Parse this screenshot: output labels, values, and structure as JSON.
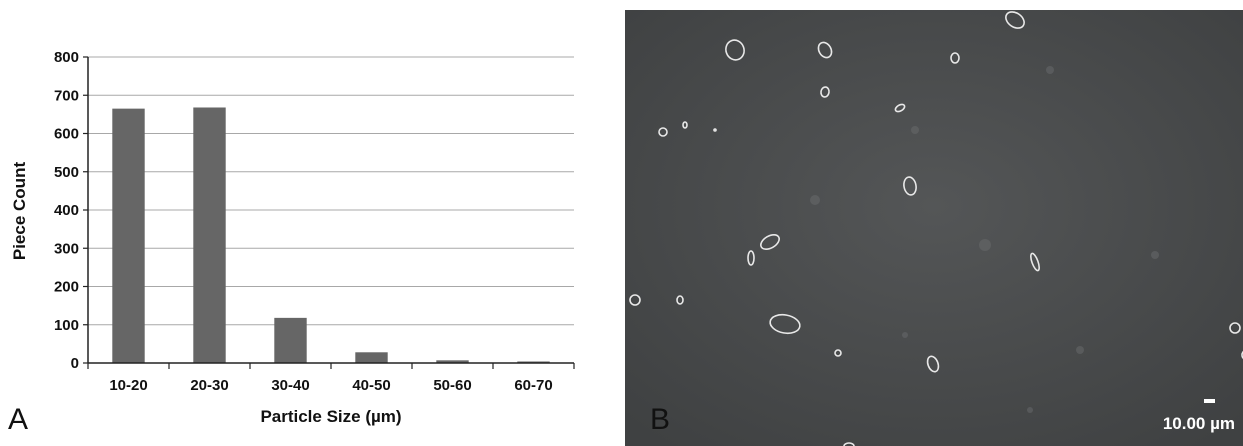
{
  "panels": {
    "a_label": "A",
    "b_label": "B"
  },
  "chart_data": {
    "type": "bar",
    "categories": [
      "10-20",
      "20-30",
      "30-40",
      "40-50",
      "50-60",
      "60-70"
    ],
    "values": [
      665,
      668,
      118,
      28,
      7,
      4
    ],
    "xlabel": "Particle Size (µm)",
    "ylabel": "Piece Count",
    "ylim": [
      0,
      800
    ],
    "yticks": [
      0,
      100,
      200,
      300,
      400,
      500,
      600,
      700,
      800
    ],
    "grid": true,
    "legend": "none",
    "bar_color": "#666666"
  },
  "micrograph": {
    "scale_label": "10.00 µm",
    "background_color": "#4a4c4d"
  }
}
